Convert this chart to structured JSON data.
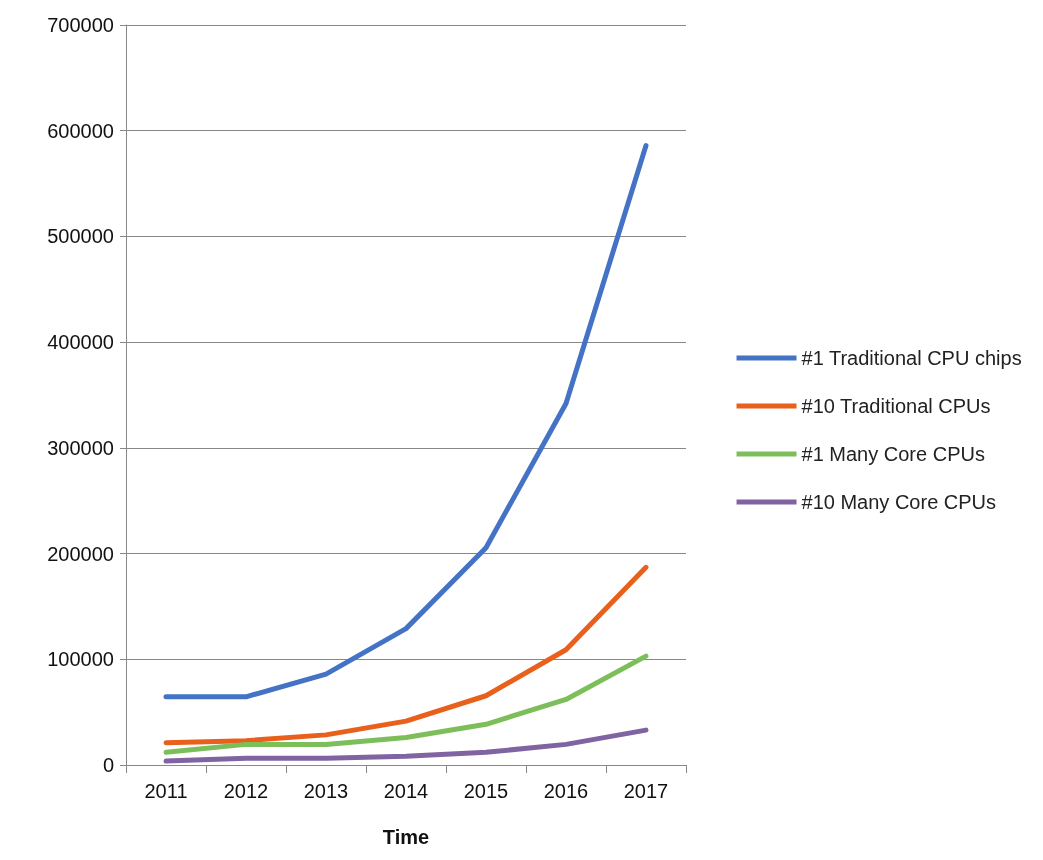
{
  "chart_data": {
    "type": "line",
    "xlabel": "Time",
    "categories": [
      "2011",
      "2012",
      "2013",
      "2014",
      "2015",
      "2016",
      "2017"
    ],
    "series": [
      {
        "name": "#1 Traditional CPU chips",
        "color": "#4472c4",
        "values": [
          64500,
          64500,
          86000,
          129000,
          205500,
          342000,
          586000
        ]
      },
      {
        "name": "#10 Traditional CPUs",
        "color": "#e8601c",
        "values": [
          21000,
          23000,
          28500,
          41500,
          65500,
          109000,
          187000
        ]
      },
      {
        "name": "#1 Many Core CPUs",
        "color": "#7cbf5a",
        "values": [
          12000,
          19500,
          19500,
          26000,
          38500,
          62000,
          103000
        ]
      },
      {
        "name": "#10 Many Core CPUs",
        "color": "#8064a2",
        "values": [
          3700,
          6500,
          6500,
          8300,
          12000,
          19500,
          33000
        ]
      }
    ],
    "ylim": [
      0,
      700000
    ],
    "yticks": [
      0,
      100000,
      200000,
      300000,
      400000,
      500000,
      600000,
      700000
    ],
    "grid": "y",
    "legend": "right",
    "marker": "none",
    "line_style": "solid"
  }
}
